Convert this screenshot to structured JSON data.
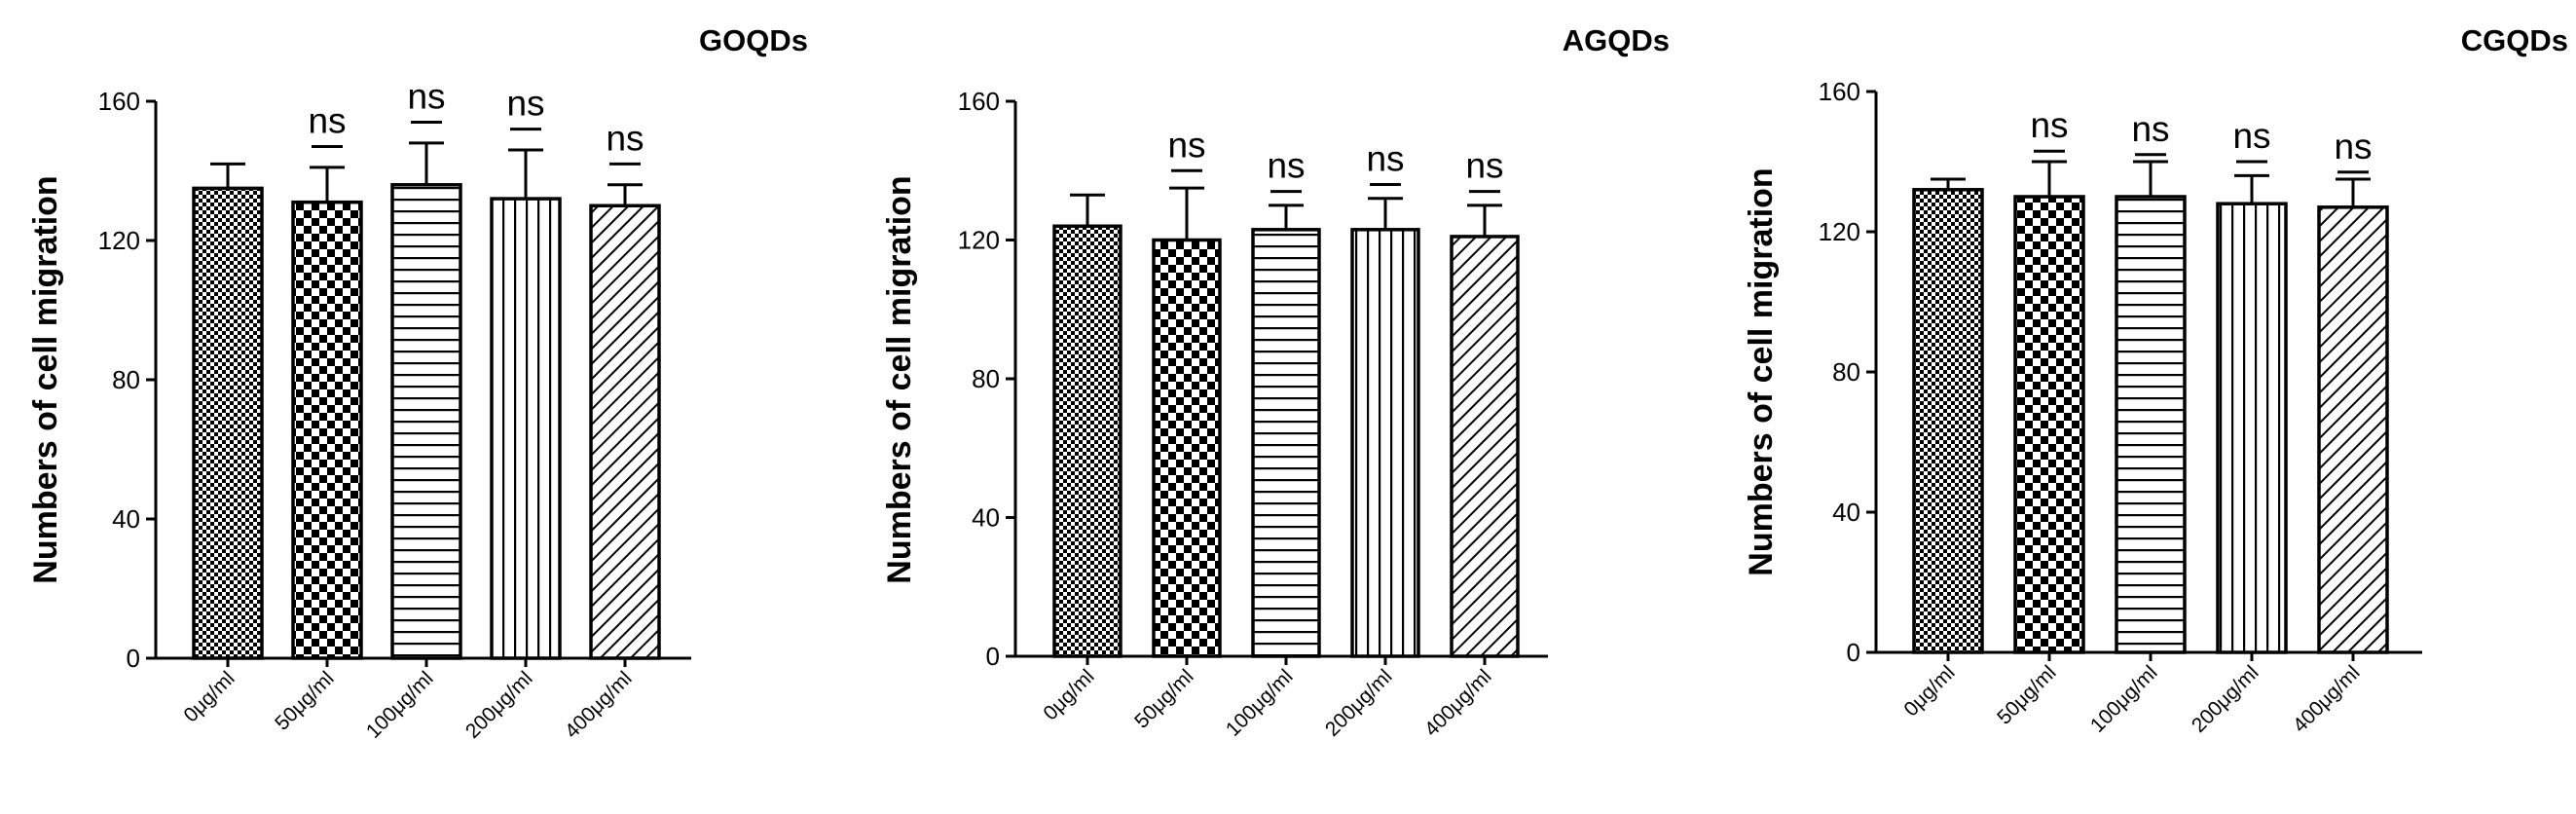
{
  "chart_data": [
    {
      "type": "bar",
      "title": "GOQDs",
      "xlabel": "",
      "ylabel": "Numbers of cell migration",
      "ylim": [
        0,
        160
      ],
      "yticks": [
        0,
        40,
        80,
        120,
        160
      ],
      "categories": [
        "0μg/ml",
        "50μg/ml",
        "100μg/ml",
        "200μg/ml",
        "400μg/ml"
      ],
      "values": [
        135,
        131,
        136,
        132,
        130
      ],
      "errors": [
        7,
        10,
        12,
        14,
        6
      ],
      "significance": [
        "",
        "ns",
        "ns",
        "ns",
        "ns"
      ],
      "sig_line": [
        null,
        147,
        154,
        152,
        142
      ],
      "patterns": [
        "fine-check",
        "checker",
        "hlines",
        "vlines",
        "diag"
      ]
    },
    {
      "type": "bar",
      "title": "AGQDs",
      "xlabel": "",
      "ylabel": "Numbers of cell migration",
      "ylim": [
        0,
        160
      ],
      "yticks": [
        0,
        40,
        80,
        120,
        160
      ],
      "categories": [
        "0μg/ml",
        "50μg/ml",
        "100μg/ml",
        "200μg/ml",
        "400μg/ml"
      ],
      "values": [
        124,
        120,
        123,
        123,
        121
      ],
      "errors": [
        9,
        15,
        7,
        9,
        9
      ],
      "significance": [
        "",
        "ns",
        "ns",
        "ns",
        "ns"
      ],
      "sig_line": [
        null,
        140,
        134,
        136,
        134
      ],
      "patterns": [
        "fine-check",
        "checker",
        "hlines",
        "vlines",
        "diag"
      ]
    },
    {
      "type": "bar",
      "title": "CGQDs",
      "xlabel": "",
      "ylabel": "Numbers of cell migration",
      "ylim": [
        0,
        160
      ],
      "yticks": [
        0,
        40,
        80,
        120,
        160
      ],
      "categories": [
        "0μg/ml",
        "50μg/ml",
        "100μg/ml",
        "200μg/ml",
        "400μg/ml"
      ],
      "values": [
        132,
        130,
        130,
        128,
        127
      ],
      "errors": [
        3,
        10,
        10,
        8,
        8
      ],
      "significance": [
        "",
        "ns",
        "ns",
        "ns",
        "ns"
      ],
      "sig_line": [
        null,
        143,
        142,
        140,
        137
      ],
      "patterns": [
        "fine-check",
        "checker",
        "hlines",
        "vlines",
        "diag"
      ]
    }
  ]
}
